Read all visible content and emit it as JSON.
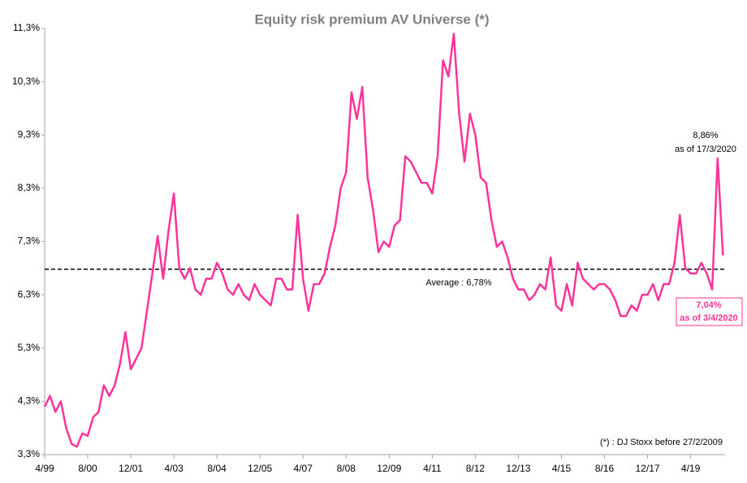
{
  "chart_data": {
    "type": "line",
    "title": "Equity risk premium AV Universe  (*)",
    "categories": [
      "4/99",
      null,
      null,
      null,
      null,
      null,
      null,
      null,
      "8/00",
      null,
      null,
      null,
      null,
      null,
      null,
      null,
      "12/01",
      null,
      null,
      null,
      null,
      null,
      null,
      null,
      "4/03",
      null,
      null,
      null,
      null,
      null,
      null,
      null,
      "8/04",
      null,
      null,
      null,
      null,
      null,
      null,
      null,
      "12/05",
      null,
      null,
      null,
      null,
      null,
      null,
      null,
      "4/07",
      null,
      null,
      null,
      null,
      null,
      null,
      null,
      "8/08",
      null,
      null,
      null,
      null,
      null,
      null,
      null,
      "12/09",
      null,
      null,
      null,
      null,
      null,
      null,
      null,
      "4/11",
      null,
      null,
      null,
      null,
      null,
      null,
      null,
      "8/12",
      null,
      null,
      null,
      null,
      null,
      null,
      null,
      "12/13",
      null,
      null,
      null,
      null,
      null,
      null,
      null,
      "4/15",
      null,
      null,
      null,
      null,
      null,
      null,
      null,
      "8/16",
      null,
      null,
      null,
      null,
      null,
      null,
      null,
      "12/17",
      null,
      null,
      null,
      null,
      null,
      null,
      null,
      "4/19",
      null,
      null,
      null,
      null,
      null,
      null
    ],
    "series": [
      {
        "color": "#ff3399",
        "values": [
          4.2,
          4.4,
          4.1,
          4.3,
          3.8,
          3.5,
          3.45,
          3.7,
          3.65,
          4.0,
          4.1,
          4.6,
          4.4,
          4.6,
          5.0,
          5.6,
          4.9,
          5.1,
          5.3,
          6.0,
          6.7,
          7.4,
          6.6,
          7.5,
          8.2,
          6.8,
          6.6,
          6.8,
          6.4,
          6.3,
          6.6,
          6.6,
          6.9,
          6.7,
          6.4,
          6.3,
          6.5,
          6.3,
          6.2,
          6.5,
          6.3,
          6.2,
          6.1,
          6.6,
          6.6,
          6.4,
          6.4,
          7.8,
          6.6,
          6.0,
          6.5,
          6.5,
          6.7,
          7.2,
          7.6,
          8.3,
          8.6,
          10.1,
          9.6,
          10.2,
          8.5,
          7.9,
          7.1,
          7.3,
          7.2,
          7.6,
          7.7,
          8.9,
          8.8,
          8.6,
          8.4,
          8.4,
          8.2,
          8.9,
          10.7,
          10.4,
          11.2,
          9.7,
          8.8,
          9.7,
          9.3,
          8.5,
          8.4,
          7.7,
          7.2,
          7.3,
          7.0,
          6.6,
          6.4,
          6.4,
          6.2,
          6.3,
          6.5,
          6.4,
          7.0,
          6.1,
          6.0,
          6.5,
          6.1,
          6.9,
          6.6,
          6.5,
          6.4,
          6.5,
          6.5,
          6.4,
          6.2,
          5.9,
          5.9,
          6.1,
          6.0,
          6.3,
          6.3,
          6.5,
          6.2,
          6.5,
          6.5,
          6.9,
          7.8,
          6.8,
          6.7,
          6.7,
          6.9,
          6.7,
          6.4,
          8.86,
          7.04
        ],
        "value_labels": [
          null,
          null,
          null,
          null,
          null,
          null,
          null,
          null,
          null,
          null,
          null,
          null,
          null,
          null,
          null,
          null,
          null,
          null,
          null,
          null,
          null,
          null,
          null,
          null,
          null,
          null,
          null,
          null,
          null,
          null,
          null,
          null,
          null,
          null,
          null,
          null,
          null,
          null,
          null,
          null,
          null,
          null,
          null,
          null,
          null,
          null,
          null,
          null,
          null,
          null,
          null,
          null,
          null,
          null,
          null,
          null,
          null,
          null,
          null,
          null,
          null,
          null,
          null,
          null,
          null,
          null,
          null,
          null,
          null,
          null,
          null,
          null,
          null,
          null,
          null,
          null,
          null,
          null,
          null,
          null,
          null,
          null,
          null,
          null,
          null,
          null,
          null,
          null,
          null,
          null,
          null,
          null,
          null,
          null,
          null,
          null,
          null,
          null,
          null,
          null,
          null,
          null,
          null,
          null,
          null,
          null,
          null,
          null,
          null,
          null,
          null,
          null,
          null,
          null,
          null,
          null,
          null,
          null,
          null,
          null,
          null,
          null,
          null,
          null,
          null,
          "8,86%",
          "7,04%"
        ]
      }
    ],
    "annotations": [
      "as of 17/3/2020",
      "as of 3/4/2020"
    ],
    "average": {
      "value": 6.78,
      "label": "Average : 6,78%"
    },
    "footnote": "(*) : DJ Stoxx before 27/2/2009",
    "ylim": [
      3.3,
      11.3
    ],
    "yticks": [
      {
        "value": 3.3,
        "label": "3,3%"
      },
      {
        "value": 4.3,
        "label": "4,3%"
      },
      {
        "value": 5.3,
        "label": "5,3%"
      },
      {
        "value": 6.3,
        "label": "6,3%"
      },
      {
        "value": 7.3,
        "label": "7,3%"
      },
      {
        "value": 8.3,
        "label": "8,3%"
      },
      {
        "value": 9.3,
        "label": "9,3%"
      },
      {
        "value": 10.3,
        "label": "10,3%"
      },
      {
        "value": 11.3,
        "label": "11,3%"
      }
    ],
    "grid": false
  }
}
